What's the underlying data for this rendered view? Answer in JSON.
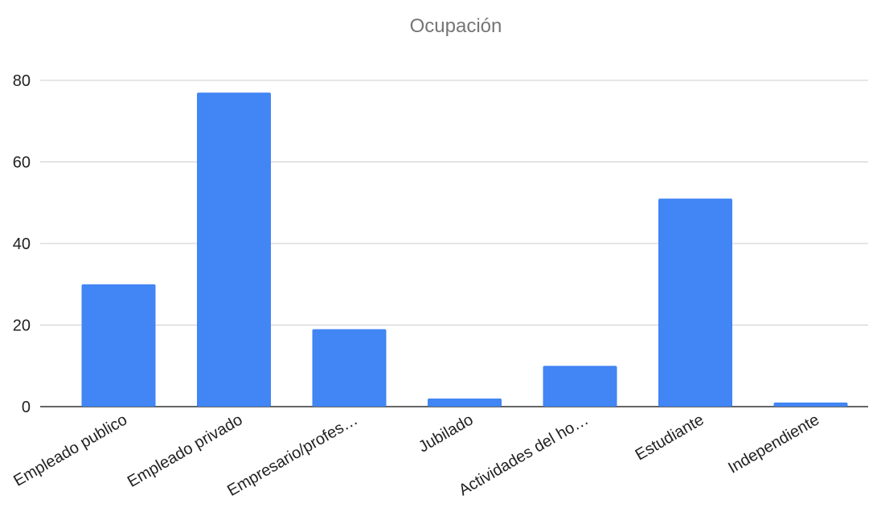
{
  "chart_data": {
    "type": "bar",
    "title": "Ocupación",
    "xlabel": "",
    "ylabel": "",
    "categories": [
      "Empleado publico",
      "Empleado privado",
      "Empresario/profes…",
      "Jubilado",
      "Actividades del ho…",
      "Estudiante",
      "Independiente"
    ],
    "values": [
      30,
      77,
      19,
      2,
      10,
      51,
      1
    ],
    "ylim": [
      0,
      80
    ],
    "yticks": [
      0,
      20,
      40,
      60,
      80
    ],
    "grid": true,
    "legend": "none",
    "bar_color": "#4285f4"
  }
}
